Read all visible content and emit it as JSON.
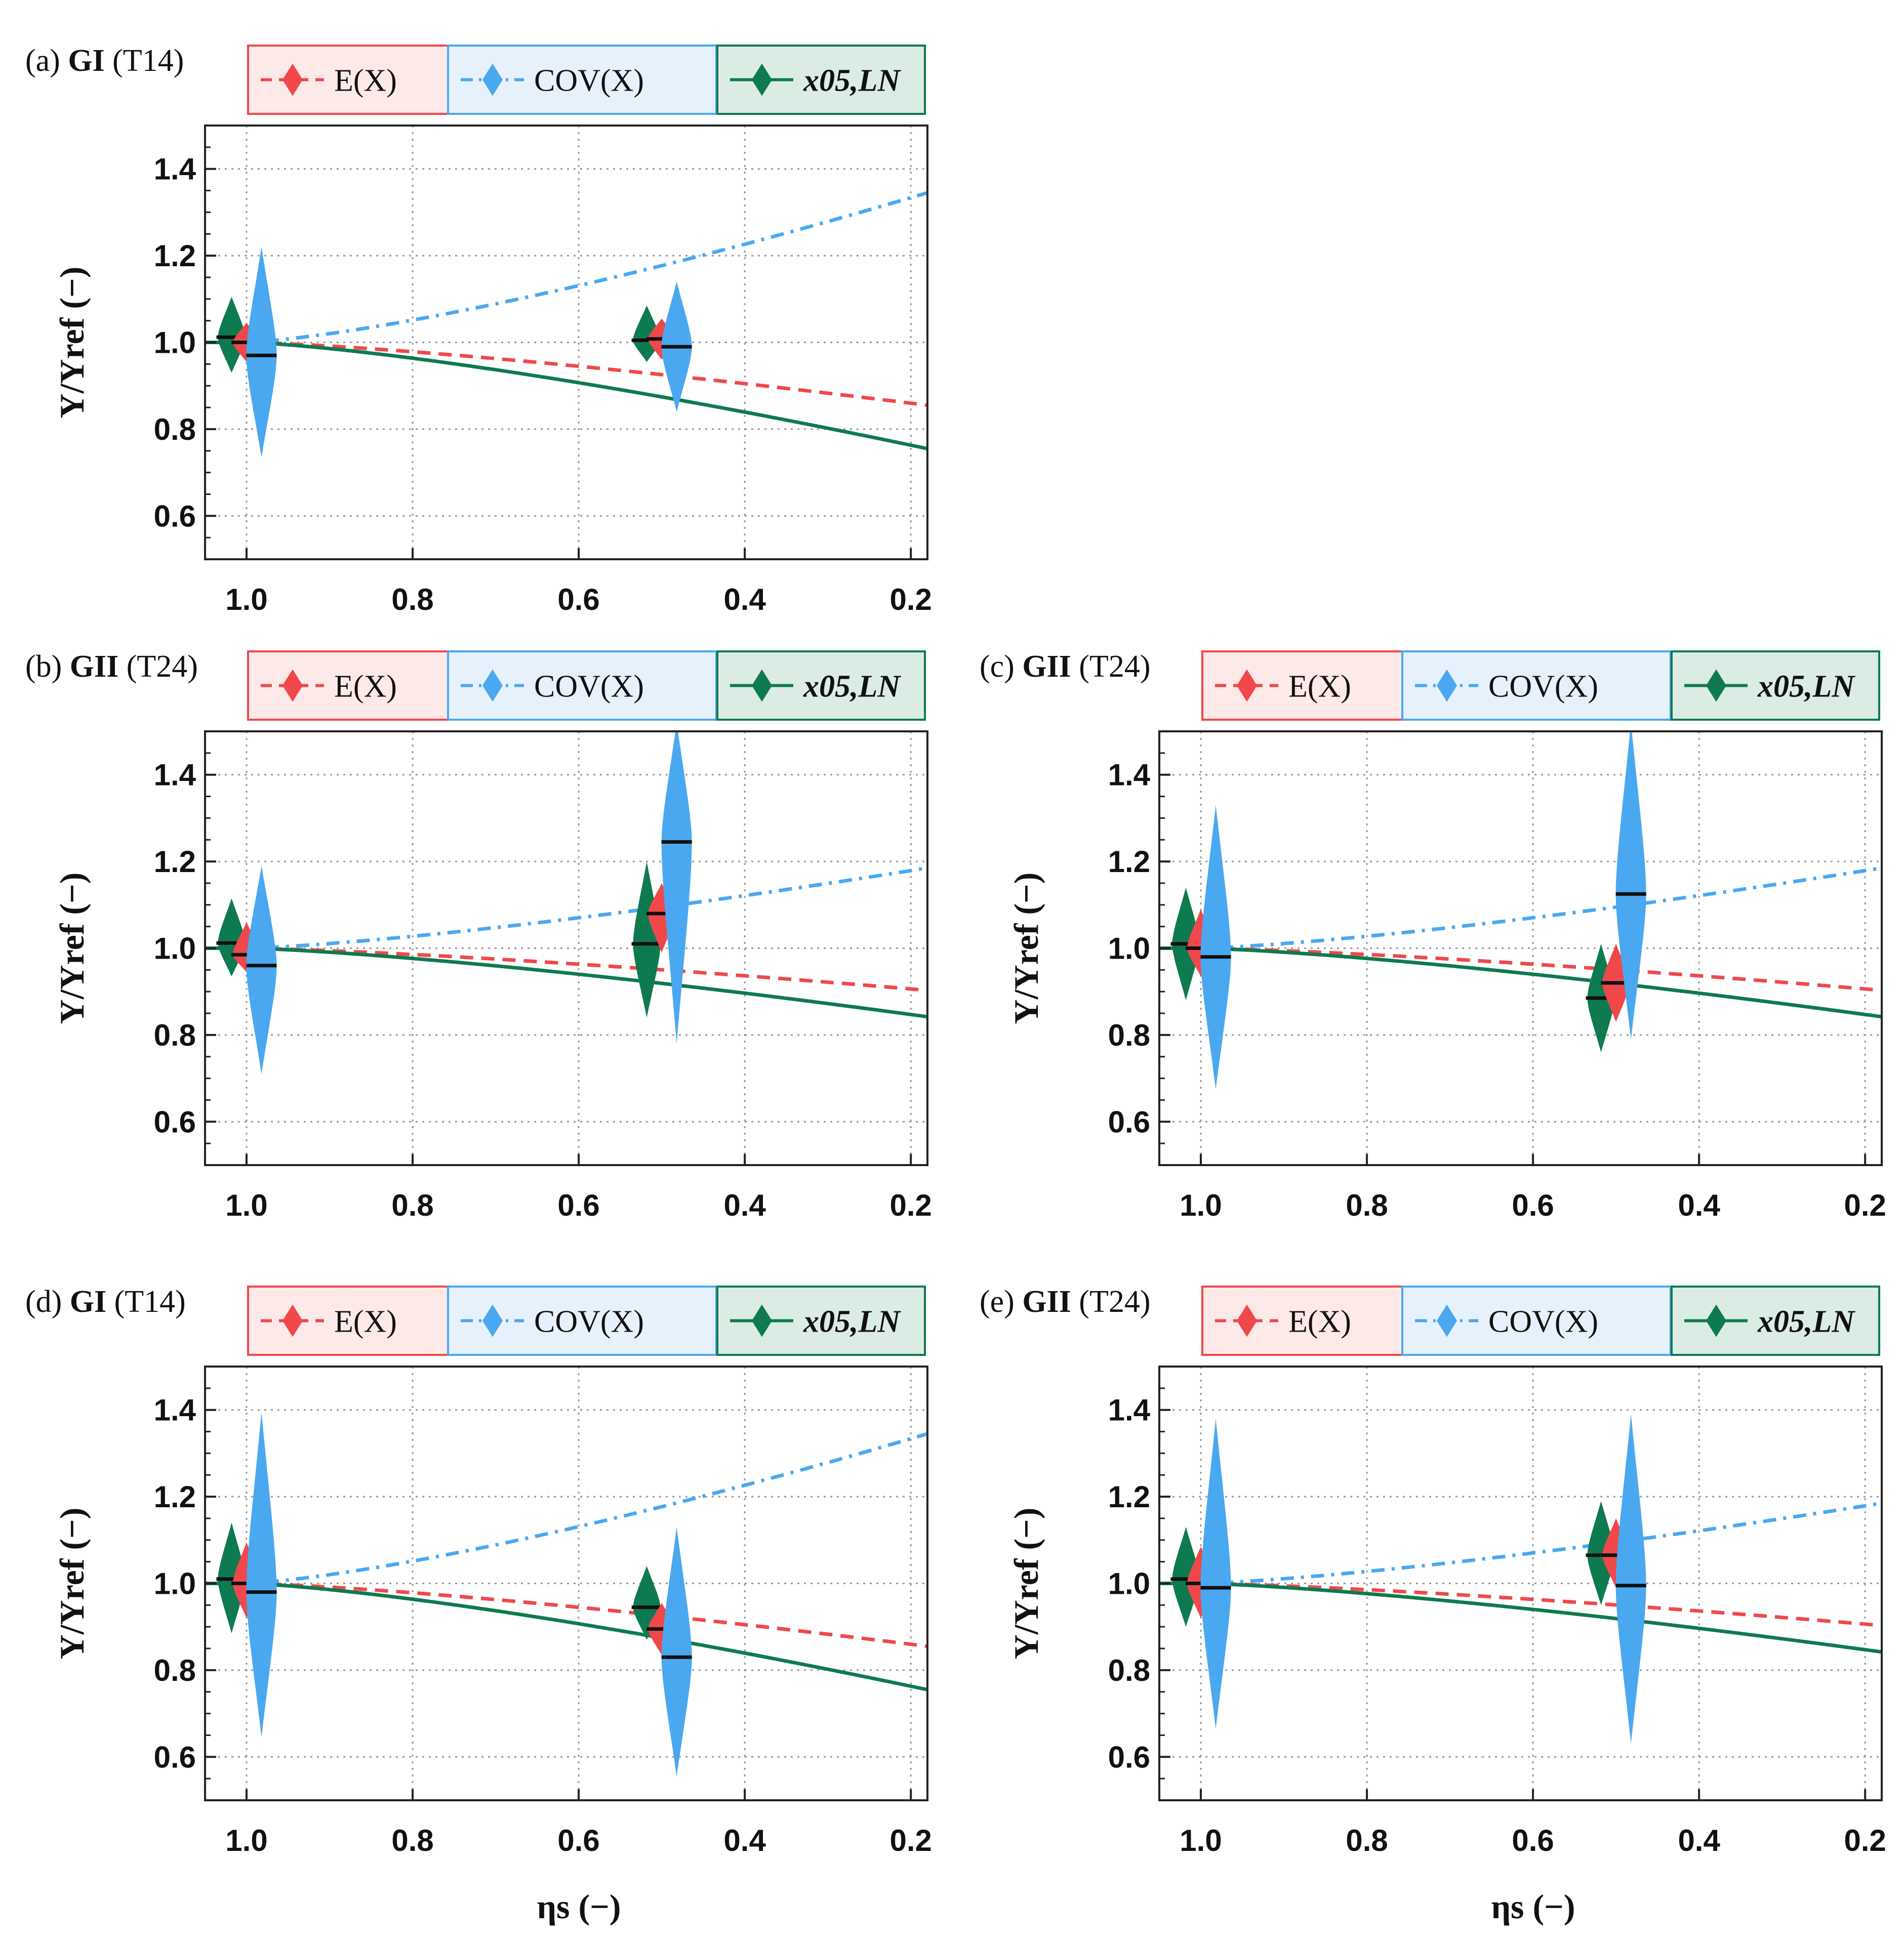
{
  "figure": {
    "xlabel": "ηs (−)",
    "ylabel": "Y/Yref (−)"
  },
  "legend": [
    {
      "label": "E(X)",
      "name": "mean",
      "color": "#f0484a",
      "bg": "#fde9e8",
      "line": "dashed"
    },
    {
      "label": "COV(X)",
      "name": "cov",
      "color": "#4aa8f0",
      "bg": "#e6f1fb",
      "line": "dashdot"
    },
    {
      "label": "x05,LN",
      "name": "x05",
      "color": "#0e7a4f",
      "bg": "#dbece4",
      "line": "solid"
    }
  ],
  "chart_data": [
    {
      "id": "a",
      "type": "line",
      "title_prefix": "(a) ",
      "title_bold": "GI",
      "title_suffix": " (T14)",
      "xlabel": "",
      "ylabel": "Y/Yref (−)",
      "xlim": [
        1.05,
        0.18
      ],
      "ylim": [
        0.5,
        1.5
      ],
      "xticks": [
        "1.0",
        "0.8",
        "0.6",
        "0.4",
        "0.2"
      ],
      "yticks": [
        "0.6",
        "0.8",
        "1.0",
        "1.2",
        "1.4"
      ],
      "curves": {
        "mean_end": 0.855,
        "cov_end": 1.345,
        "x05_end": 0.755
      },
      "distributions": [
        {
          "series": "x05",
          "x": 1.018,
          "median": 1.012,
          "lo": 0.93,
          "hi": 1.105
        },
        {
          "series": "mean",
          "x": 1.0,
          "median": 1.0,
          "lo": 0.955,
          "hi": 1.045
        },
        {
          "series": "cov",
          "x": 0.982,
          "median": 0.97,
          "lo": 0.735,
          "hi": 1.22
        },
        {
          "series": "x05",
          "x": 0.518,
          "median": 1.005,
          "lo": 0.955,
          "hi": 1.085
        },
        {
          "series": "mean",
          "x": 0.5,
          "median": 1.008,
          "lo": 0.96,
          "hi": 1.055
        },
        {
          "series": "cov",
          "x": 0.482,
          "median": 0.99,
          "lo": 0.84,
          "hi": 1.14
        }
      ]
    },
    {
      "id": "b",
      "type": "line",
      "title_prefix": "(b) ",
      "title_bold": "GII",
      "title_suffix": " (T24)",
      "xlabel": "",
      "ylabel": "Y/Yref (−)",
      "xlim": [
        1.05,
        0.18
      ],
      "ylim": [
        0.5,
        1.5
      ],
      "xticks": [
        "1.0",
        "0.8",
        "0.6",
        "0.4",
        "0.2"
      ],
      "yticks": [
        "0.6",
        "0.8",
        "1.0",
        "1.2",
        "1.4"
      ],
      "curves": {
        "mean_end": 0.903,
        "cov_end": 1.185,
        "x05_end": 0.842
      },
      "distributions": [
        {
          "series": "x05",
          "x": 1.018,
          "median": 1.012,
          "lo": 0.935,
          "hi": 1.115
        },
        {
          "series": "mean",
          "x": 1.0,
          "median": 0.985,
          "lo": 0.945,
          "hi": 1.06
        },
        {
          "series": "cov",
          "x": 0.982,
          "median": 0.96,
          "lo": 0.71,
          "hi": 1.19
        },
        {
          "series": "x05",
          "x": 0.518,
          "median": 1.01,
          "lo": 0.84,
          "hi": 1.2
        },
        {
          "series": "mean",
          "x": 0.5,
          "median": 1.08,
          "lo": 0.99,
          "hi": 1.15
        },
        {
          "series": "cov",
          "x": 0.482,
          "median": 1.245,
          "lo": 0.78,
          "hi": 1.52
        }
      ]
    },
    {
      "id": "c",
      "type": "line",
      "title_prefix": "(c) ",
      "title_bold": "GII",
      "title_suffix": " (T24)",
      "xlabel": "",
      "ylabel": "Y/Yref (−)",
      "xlim": [
        1.05,
        0.18
      ],
      "ylim": [
        0.5,
        1.5
      ],
      "xticks": [
        "1.0",
        "0.8",
        "0.6",
        "0.4",
        "0.2"
      ],
      "yticks": [
        "0.6",
        "0.8",
        "1.0",
        "1.2",
        "1.4"
      ],
      "curves": {
        "mean_end": 0.903,
        "cov_end": 1.185,
        "x05_end": 0.842
      },
      "distributions": [
        {
          "series": "x05",
          "x": 1.018,
          "median": 1.01,
          "lo": 0.88,
          "hi": 1.14
        },
        {
          "series": "mean",
          "x": 1.0,
          "median": 1.0,
          "lo": 0.935,
          "hi": 1.09
        },
        {
          "series": "cov",
          "x": 0.982,
          "median": 0.98,
          "lo": 0.675,
          "hi": 1.33
        },
        {
          "series": "x05",
          "x": 0.518,
          "median": 0.885,
          "lo": 0.76,
          "hi": 1.01
        },
        {
          "series": "mean",
          "x": 0.5,
          "median": 0.92,
          "lo": 0.83,
          "hi": 1.01
        },
        {
          "series": "cov",
          "x": 0.482,
          "median": 1.125,
          "lo": 0.79,
          "hi": 1.52
        }
      ]
    },
    {
      "id": "d",
      "type": "line",
      "title_prefix": "(d) ",
      "title_bold": "GI",
      "title_suffix": " (T14)",
      "xlabel": "ηs (−)",
      "ylabel": "Y/Yref (−)",
      "xlim": [
        1.05,
        0.18
      ],
      "ylim": [
        0.5,
        1.5
      ],
      "xticks": [
        "1.0",
        "0.8",
        "0.6",
        "0.4",
        "0.2"
      ],
      "yticks": [
        "0.6",
        "0.8",
        "1.0",
        "1.2",
        "1.4"
      ],
      "curves": {
        "mean_end": 0.855,
        "cov_end": 1.345,
        "x05_end": 0.755
      },
      "distributions": [
        {
          "series": "x05",
          "x": 1.018,
          "median": 1.01,
          "lo": 0.885,
          "hi": 1.14
        },
        {
          "series": "mean",
          "x": 1.0,
          "median": 1.0,
          "lo": 0.92,
          "hi": 1.095
        },
        {
          "series": "cov",
          "x": 0.982,
          "median": 0.98,
          "lo": 0.645,
          "hi": 1.395
        },
        {
          "series": "x05",
          "x": 0.518,
          "median": 0.945,
          "lo": 0.87,
          "hi": 1.04
        },
        {
          "series": "mean",
          "x": 0.5,
          "median": 0.895,
          "lo": 0.835,
          "hi": 0.955
        },
        {
          "series": "cov",
          "x": 0.482,
          "median": 0.83,
          "lo": 0.555,
          "hi": 1.13
        }
      ]
    },
    {
      "id": "e",
      "type": "line",
      "title_prefix": "(e) ",
      "title_bold": "GII",
      "title_suffix": " (T24)",
      "xlabel": "ηs (−)",
      "ylabel": "Y/Yref (−)",
      "xlim": [
        1.05,
        0.18
      ],
      "ylim": [
        0.5,
        1.5
      ],
      "xticks": [
        "1.0",
        "0.8",
        "0.6",
        "0.4",
        "0.2"
      ],
      "yticks": [
        "0.6",
        "0.8",
        "1.0",
        "1.2",
        "1.4"
      ],
      "curves": {
        "mean_end": 0.903,
        "cov_end": 1.185,
        "x05_end": 0.842
      },
      "distributions": [
        {
          "series": "x05",
          "x": 1.018,
          "median": 1.01,
          "lo": 0.9,
          "hi": 1.13
        },
        {
          "series": "mean",
          "x": 1.0,
          "median": 1.0,
          "lo": 0.92,
          "hi": 1.085
        },
        {
          "series": "cov",
          "x": 0.982,
          "median": 0.99,
          "lo": 0.665,
          "hi": 1.38
        },
        {
          "series": "x05",
          "x": 0.518,
          "median": 1.065,
          "lo": 0.95,
          "hi": 1.19
        },
        {
          "series": "mean",
          "x": 0.5,
          "median": 1.065,
          "lo": 0.99,
          "hi": 1.15
        },
        {
          "series": "cov",
          "x": 0.482,
          "median": 0.995,
          "lo": 0.63,
          "hi": 1.39
        }
      ]
    }
  ]
}
